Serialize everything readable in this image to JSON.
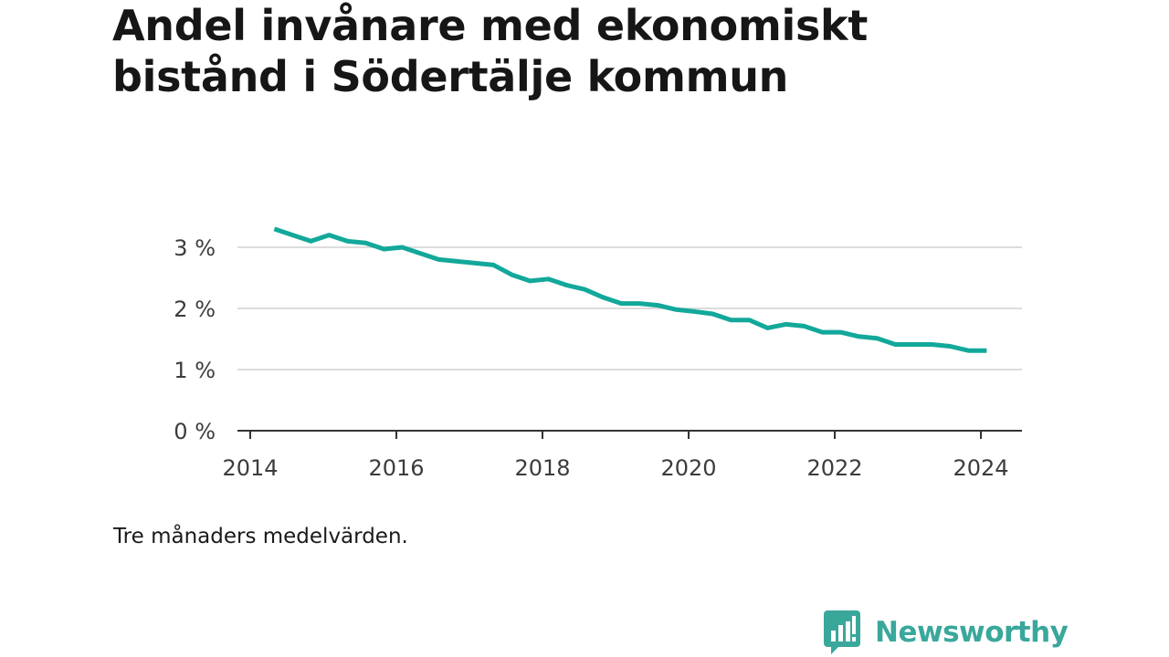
{
  "title_lines": [
    "Andel invånare med ekonomiskt",
    "bistånd i Södertälje kommun"
  ],
  "caption": "Tre månaders medelvärden.",
  "brand": {
    "name": "Newsworthy",
    "icon": "newsworthy-bar-chart-speech-bubble-icon",
    "color": "#3aa79b"
  },
  "chart_data": {
    "type": "line",
    "title": "Andel invånare med ekonomiskt bistånd i Södertälje kommun",
    "xlabel": "",
    "ylabel": "",
    "xlim": [
      2014,
      2024.6
    ],
    "ylim": [
      0,
      3.5
    ],
    "x_ticks": [
      2014,
      2016,
      2018,
      2020,
      2022,
      2024
    ],
    "x_tick_labels": [
      "2014",
      "2016",
      "2018",
      "2020",
      "2022",
      "2024"
    ],
    "y_ticks": [
      0,
      1,
      2,
      3
    ],
    "y_tick_labels": [
      "0 %",
      "1 %",
      "2 %",
      "3 %"
    ],
    "grid": "horizontal",
    "legend": "none",
    "line_color": "#12a89a",
    "series": [
      {
        "x": [
          2014.33,
          2014.58,
          2014.83,
          2015.08,
          2015.33,
          2015.58,
          2015.83,
          2016.08,
          2016.33,
          2016.58,
          2016.83,
          2017.08,
          2017.33,
          2017.58,
          2017.83,
          2018.08,
          2018.33,
          2018.58,
          2018.83,
          2019.08,
          2019.33,
          2019.58,
          2019.83,
          2020.08,
          2020.33,
          2020.58,
          2020.83,
          2021.08,
          2021.33,
          2021.58,
          2021.83,
          2022.08,
          2022.33,
          2022.58,
          2022.83,
          2023.08,
          2023.33,
          2023.58,
          2023.83,
          2024.08
        ],
        "values": [
          3.3,
          3.2,
          3.1,
          3.2,
          3.1,
          3.07,
          2.97,
          3.0,
          2.9,
          2.8,
          2.77,
          2.74,
          2.71,
          2.55,
          2.45,
          2.48,
          2.38,
          2.31,
          2.18,
          2.08,
          2.08,
          2.05,
          1.98,
          1.95,
          1.91,
          1.81,
          1.81,
          1.68,
          1.74,
          1.71,
          1.61,
          1.61,
          1.54,
          1.51,
          1.41,
          1.41,
          1.41,
          1.38,
          1.31,
          1.31
        ]
      }
    ]
  }
}
